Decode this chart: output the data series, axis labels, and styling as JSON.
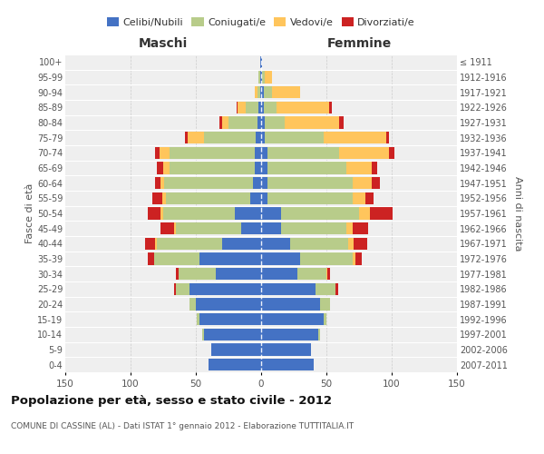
{
  "age_groups": [
    "0-4",
    "5-9",
    "10-14",
    "15-19",
    "20-24",
    "25-29",
    "30-34",
    "35-39",
    "40-44",
    "45-49",
    "50-54",
    "55-59",
    "60-64",
    "65-69",
    "70-74",
    "75-79",
    "80-84",
    "85-89",
    "90-94",
    "95-99",
    "100+"
  ],
  "birth_years": [
    "2007-2011",
    "2002-2006",
    "1997-2001",
    "1992-1996",
    "1987-1991",
    "1982-1986",
    "1977-1981",
    "1972-1976",
    "1967-1971",
    "1962-1966",
    "1957-1961",
    "1952-1956",
    "1947-1951",
    "1942-1946",
    "1937-1941",
    "1932-1936",
    "1927-1931",
    "1922-1926",
    "1917-1921",
    "1912-1916",
    "≤ 1911"
  ],
  "male": {
    "celibi": [
      40,
      38,
      44,
      47,
      50,
      55,
      35,
      47,
      30,
      15,
      20,
      8,
      6,
      5,
      5,
      4,
      3,
      2,
      1,
      1,
      1
    ],
    "coniugati": [
      0,
      0,
      1,
      2,
      5,
      10,
      28,
      35,
      50,
      50,
      55,
      65,
      68,
      65,
      65,
      40,
      22,
      10,
      2,
      1,
      0
    ],
    "vedovi": [
      0,
      0,
      0,
      0,
      0,
      0,
      0,
      0,
      1,
      2,
      2,
      3,
      3,
      5,
      8,
      12,
      5,
      6,
      2,
      0,
      0
    ],
    "divorziati": [
      0,
      0,
      0,
      0,
      0,
      2,
      2,
      5,
      8,
      10,
      10,
      7,
      4,
      5,
      3,
      2,
      2,
      1,
      0,
      0,
      0
    ]
  },
  "female": {
    "nubili": [
      40,
      38,
      44,
      48,
      45,
      42,
      28,
      30,
      22,
      15,
      15,
      5,
      5,
      5,
      5,
      3,
      3,
      2,
      2,
      1,
      1
    ],
    "coniugate": [
      0,
      0,
      1,
      2,
      8,
      15,
      22,
      40,
      45,
      50,
      60,
      65,
      65,
      60,
      55,
      45,
      15,
      10,
      6,
      2,
      0
    ],
    "vedove": [
      0,
      0,
      0,
      0,
      0,
      0,
      1,
      2,
      4,
      5,
      8,
      10,
      15,
      20,
      38,
      48,
      42,
      40,
      22,
      5,
      0
    ],
    "divorziate": [
      0,
      0,
      0,
      0,
      0,
      2,
      2,
      5,
      10,
      12,
      18,
      6,
      6,
      4,
      4,
      2,
      3,
      2,
      0,
      0,
      0
    ]
  },
  "colors": {
    "celibi": "#4472c4",
    "coniugati": "#b8cc8a",
    "vedovi": "#ffc55c",
    "divorziati": "#cc2222"
  },
  "xlim": 150,
  "title": "Popolazione per età, sesso e stato civile - 2012",
  "subtitle": "COMUNE DI CASSINE (AL) - Dati ISTAT 1° gennaio 2012 - Elaborazione TUTTITALIA.IT",
  "ylabel_left": "Fasce di età",
  "ylabel_right": "Anni di nascita",
  "xlabel_left": "Maschi",
  "xlabel_right": "Femmine",
  "legend_labels": [
    "Celibi/Nubili",
    "Coniugati/e",
    "Vedovi/e",
    "Divorziati/e"
  ],
  "background_color": "#efefef"
}
